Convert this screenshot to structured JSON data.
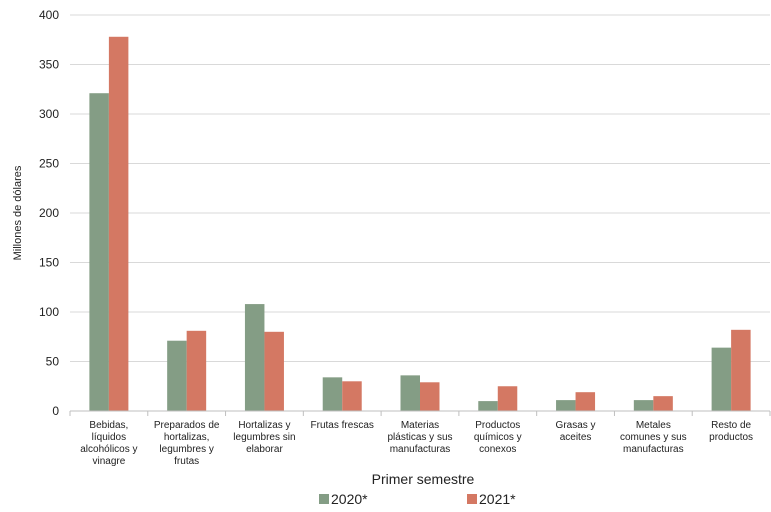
{
  "chart_data": {
    "type": "bar",
    "title": "",
    "xlabel": "Primer semestre",
    "ylabel": "Millones de dólares",
    "ylim": [
      0,
      400
    ],
    "yticks": [
      0,
      50,
      100,
      150,
      200,
      250,
      300,
      350,
      400
    ],
    "grid": true,
    "legend_position": "bottom",
    "categories": [
      [
        "Bebidas,",
        "líquidos",
        "alcohólicos y",
        "vinagre"
      ],
      [
        "Preparados de",
        "hortalizas,",
        "legumbres y",
        "frutas"
      ],
      [
        "Hortalizas y",
        "legumbres sin",
        "elaborar"
      ],
      [
        "Frutas frescas"
      ],
      [
        "Materias",
        "plásticas y sus",
        "manufacturas"
      ],
      [
        "Productos",
        "químicos y",
        "conexos"
      ],
      [
        "Grasas y",
        "aceites"
      ],
      [
        "Metales",
        "comunes y sus",
        "manufacturas"
      ],
      [
        "Resto de",
        "productos"
      ]
    ],
    "series": [
      {
        "name": "2020*",
        "color": "#849d85",
        "values": [
          321,
          71,
          108,
          34,
          36,
          10,
          11,
          11,
          64
        ]
      },
      {
        "name": "2021*",
        "color": "#d47863",
        "values": [
          378,
          81,
          80,
          30,
          29,
          25,
          19,
          15,
          82
        ]
      }
    ]
  }
}
